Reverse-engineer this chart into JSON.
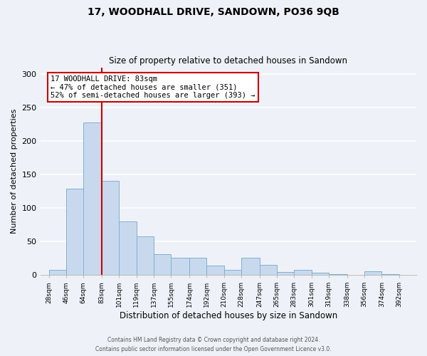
{
  "title": "17, WOODHALL DRIVE, SANDOWN, PO36 9QB",
  "subtitle": "Size of property relative to detached houses in Sandown",
  "xlabel": "Distribution of detached houses by size in Sandown",
  "ylabel": "Number of detached properties",
  "bar_left_edges": [
    28,
    46,
    64,
    83,
    101,
    119,
    137,
    155,
    174,
    192,
    210,
    228,
    247,
    265,
    283,
    301,
    319,
    338,
    356,
    374
  ],
  "bar_heights": [
    7,
    129,
    228,
    140,
    80,
    58,
    31,
    26,
    26,
    14,
    8,
    26,
    15,
    4,
    8,
    3,
    1,
    0,
    5,
    1
  ],
  "bar_widths": [
    18,
    18,
    19,
    18,
    18,
    18,
    18,
    19,
    18,
    18,
    18,
    19,
    18,
    18,
    18,
    18,
    19,
    18,
    18,
    18
  ],
  "tick_labels": [
    "28sqm",
    "46sqm",
    "64sqm",
    "83sqm",
    "101sqm",
    "119sqm",
    "137sqm",
    "155sqm",
    "174sqm",
    "192sqm",
    "210sqm",
    "228sqm",
    "247sqm",
    "265sqm",
    "283sqm",
    "301sqm",
    "319sqm",
    "338sqm",
    "356sqm",
    "374sqm",
    "392sqm"
  ],
  "tick_positions": [
    28,
    46,
    64,
    83,
    101,
    119,
    137,
    155,
    174,
    192,
    210,
    228,
    247,
    265,
    283,
    301,
    319,
    338,
    356,
    374,
    392
  ],
  "bar_color": "#c9d9ed",
  "bar_edge_color": "#7fafd4",
  "vline_x": 83,
  "vline_color": "#cc0000",
  "annotation_line1": "17 WOODHALL DRIVE: 83sqm",
  "annotation_line2": "← 47% of detached houses are smaller (351)",
  "annotation_line3": "52% of semi-detached houses are larger (393) →",
  "annotation_box_color": "#ffffff",
  "annotation_box_edge_color": "#cc0000",
  "ylim": [
    0,
    310
  ],
  "xlim": [
    19,
    410
  ],
  "yticks": [
    0,
    50,
    100,
    150,
    200,
    250,
    300
  ],
  "bg_color": "#eef2f8",
  "grid_color": "#ffffff",
  "footer_line1": "Contains HM Land Registry data © Crown copyright and database right 2024.",
  "footer_line2": "Contains public sector information licensed under the Open Government Licence v3.0."
}
